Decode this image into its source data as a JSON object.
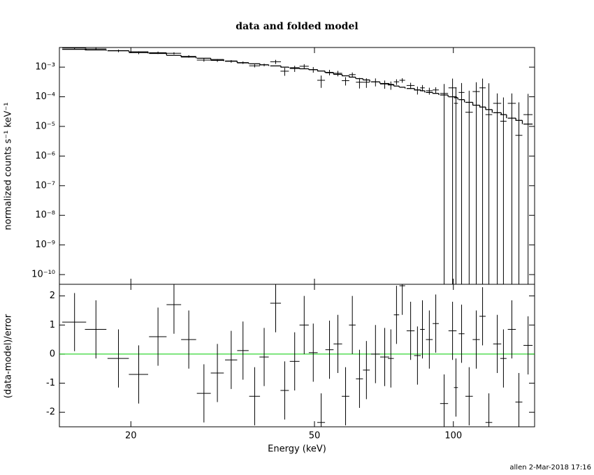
{
  "footer": "allen   2-Mar-2018 17:16",
  "chart_data": [
    {
      "type": "errorbar",
      "title": "data and folded model",
      "y_label": "normalized counts s⁻¹ keV⁻¹",
      "xlog": true,
      "ylog": true,
      "xlim": [
        14,
        150
      ],
      "ylim": [
        4.7e-11,
        0.0046
      ],
      "yticks": [
        {
          "value": 0.001,
          "label": "10⁻³"
        },
        {
          "value": 0.0001,
          "label": "10⁻⁴"
        },
        {
          "value": 1e-05,
          "label": "10⁻⁵"
        },
        {
          "value": 1e-06,
          "label": "10⁻⁶"
        },
        {
          "value": 1e-07,
          "label": "10⁻⁷"
        },
        {
          "value": 1e-08,
          "label": "10⁻⁸"
        },
        {
          "value": 1e-09,
          "label": "10⁻⁹"
        },
        {
          "value": 1e-10,
          "label": "10⁻¹⁰"
        }
      ],
      "x": [
        15.1,
        16.8,
        18.8,
        20.8,
        22.9,
        24.8,
        26.7,
        28.8,
        30.8,
        33.0,
        35.0,
        37.1,
        38.9,
        41.2,
        43.1,
        45.3,
        47.5,
        49.7,
        51.7,
        53.9,
        56.2,
        58.4,
        60.4,
        62.6,
        64.8,
        67.8,
        71.0,
        73.2,
        75.3,
        77.5,
        80.8,
        83.6,
        85.7,
        88.7,
        91.6,
        95.5,
        99.6,
        101.3,
        104.2,
        108.2,
        112.1,
        115.7,
        119.4,
        124.5,
        128.4,
        133.9,
        138.7,
        145.2
      ],
      "xerr": [
        0.9,
        0.9,
        1.0,
        1.0,
        1.0,
        0.9,
        1.0,
        1.0,
        1.0,
        1.0,
        1.0,
        1.0,
        0.9,
        1.1,
        0.9,
        1.1,
        1.1,
        1.1,
        1.0,
        1.1,
        1.2,
        1.1,
        1.0,
        1.1,
        1.1,
        1.5,
        1.6,
        1.1,
        1.0,
        1.1,
        1.6,
        1.4,
        1.0,
        1.5,
        1.4,
        1.9,
        2.0,
        1.0,
        1.5,
        2.0,
        2.0,
        1.8,
        2.0,
        2.5,
        2.0,
        2.7,
        2.4,
        3.3
      ],
      "series": [
        {
          "kind": "data",
          "color": "#000000",
          "values": [
            0.00444,
            0.00412,
            0.00355,
            0.00307,
            0.00307,
            0.00293,
            0.00231,
            0.00173,
            0.00168,
            0.00157,
            0.00142,
            0.00111,
            0.00119,
            0.00152,
            0.00073,
            0.0009,
            0.00107,
            0.00083,
            0.00036,
            0.00067,
            0.00062,
            0.00035,
            0.00056,
            0.00031,
            0.00031,
            0.00032,
            0.00027,
            0.00025,
            0.00032,
            0.00036,
            0.00024,
            0.00017,
            0.0002,
            0.00016,
            0.00017,
            0.00013,
            0.0002,
            6e-05,
            0.00014,
            3e-05,
            0.00015,
            0.0002,
            2.5e-05,
            6e-05,
            1.5e-05,
            6e-05,
            5e-06,
            2.5e-05
          ],
          "yerr": [
            0.0004,
            0.00038,
            0.00036,
            0.00033,
            0.00029,
            0.00025,
            0.00022,
            0.0002,
            0.00018,
            0.00016,
            0.00014,
            0.00013,
            0.00012,
            0.00024,
            0.00022,
            0.00021,
            0.00019,
            0.00018,
            0.00016,
            0.00014,
            0.00013,
            0.00011,
            0.0001,
            0.00012,
            0.00011,
            9.6e-05,
            8.4e-05,
            7.8e-05,
            6.9e-05,
            6.3e-05,
            5.7e-05,
            5.1e-05,
            4.8e-05,
            4.2e-05,
            3.9e-05,
            0.00014,
            0.00021,
            0.00015,
            0.00015,
            0.00013,
            0.00016,
            0.00021,
            0.00026,
            7e-05,
            8e-05,
            7e-05,
            6e-05,
            0.0001
          ]
        },
        {
          "kind": "model",
          "color": "#000000",
          "values": [
            0.004,
            0.0038,
            0.0036,
            0.0033,
            0.0029,
            0.0025,
            0.0022,
            0.002,
            0.0018,
            0.0016,
            0.0014,
            0.0013,
            0.0012,
            0.0011,
            0.001,
            0.00095,
            0.00088,
            0.00082,
            0.00074,
            0.00065,
            0.00057,
            0.00051,
            0.00046,
            0.00041,
            0.00037,
            0.00032,
            0.00028,
            0.00026,
            0.00023,
            0.00021,
            0.00019,
            0.00017,
            0.00016,
            0.00014,
            0.00013,
            0.000115,
            0.0001,
            9.3e-05,
            8e-05,
            6.5e-05,
            5.2e-05,
            4.5e-05,
            3.7e-05,
            2.9e-05,
            2.5e-05,
            1.9e-05,
            1.6e-05,
            1.2e-05
          ]
        }
      ]
    },
    {
      "type": "errorbar",
      "x_label": "Energy (keV)",
      "y_label": "(data-model)/error",
      "xlog": true,
      "ylog": false,
      "xlim": [
        14,
        150
      ],
      "ylim": [
        -2.5,
        2.4
      ],
      "xticks": [
        20,
        50,
        100
      ],
      "yticks": [
        -2,
        -1,
        0,
        1,
        2
      ],
      "hline": 0,
      "hline_color": "#00cc00",
      "x": [
        15.1,
        16.8,
        18.8,
        20.8,
        22.9,
        24.8,
        26.7,
        28.8,
        30.8,
        33.0,
        35.0,
        37.1,
        38.9,
        41.2,
        43.1,
        45.3,
        47.5,
        49.7,
        51.7,
        53.9,
        56.2,
        58.4,
        60.4,
        62.6,
        64.8,
        67.8,
        71.0,
        73.2,
        75.3,
        77.5,
        80.8,
        83.6,
        85.7,
        88.7,
        91.6,
        95.5,
        99.6,
        101.3,
        104.2,
        108.2,
        112.1,
        115.7,
        119.4,
        124.5,
        128.4,
        133.9,
        138.7,
        145.2
      ],
      "xerr": [
        0.9,
        0.9,
        1.0,
        1.0,
        1.0,
        0.9,
        1.0,
        1.0,
        1.0,
        1.0,
        1.0,
        1.0,
        0.9,
        1.1,
        0.9,
        1.1,
        1.1,
        1.1,
        1.0,
        1.1,
        1.2,
        1.1,
        1.0,
        1.1,
        1.1,
        1.5,
        1.6,
        1.1,
        1.0,
        1.1,
        1.6,
        1.4,
        1.0,
        1.5,
        1.4,
        1.9,
        2.0,
        1.0,
        1.5,
        2.0,
        2.0,
        1.8,
        2.0,
        2.5,
        2.0,
        2.7,
        2.4,
        3.3
      ],
      "series": [
        {
          "kind": "data",
          "color": "#000000",
          "values": [
            1.1,
            0.85,
            -0.15,
            -0.7,
            0.6,
            1.7,
            0.5,
            -1.35,
            -0.65,
            -0.2,
            0.12,
            -1.45,
            -0.1,
            1.75,
            -1.25,
            -0.25,
            1.0,
            0.05,
            -2.35,
            0.15,
            0.35,
            -1.45,
            1.0,
            -0.85,
            -0.55,
            0.0,
            -0.1,
            -0.15,
            1.35,
            2.35,
            0.8,
            -0.05,
            0.85,
            0.5,
            1.05,
            -1.7,
            0.8,
            -1.15,
            0.7,
            -1.45,
            0.5,
            1.3,
            -2.35,
            0.35,
            -0.15,
            0.85,
            -1.65,
            0.3
          ],
          "yerr": [
            1,
            1,
            1,
            1,
            1,
            1,
            1,
            1,
            1,
            1,
            1,
            1,
            1,
            1,
            1,
            1,
            1,
            1,
            1,
            1,
            1,
            1,
            1,
            1,
            1,
            1,
            1,
            1,
            1,
            1,
            1,
            1,
            1,
            1,
            1,
            1,
            1,
            1,
            1,
            1,
            1,
            1,
            1,
            1,
            1,
            1,
            1,
            1
          ]
        }
      ]
    }
  ]
}
